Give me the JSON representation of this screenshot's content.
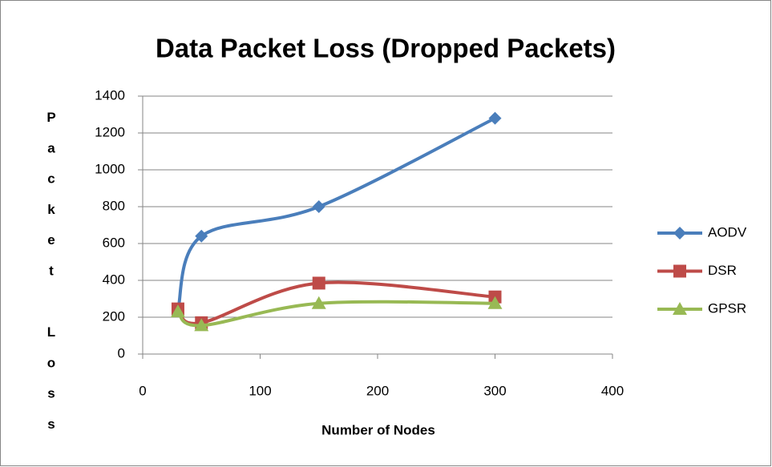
{
  "chart_data": {
    "type": "line",
    "title": "Data Packet Loss (Dropped Packets)",
    "x_label": "Number of Nodes",
    "y_label": "Packet Loss",
    "x": [
      30,
      50,
      150,
      300
    ],
    "series": [
      {
        "name": "AODV",
        "color": "#4a7ebb",
        "marker": "diamond",
        "values": [
          240,
          640,
          800,
          1280
        ]
      },
      {
        "name": "DSR",
        "color": "#be4b48",
        "marker": "square",
        "values": [
          245,
          170,
          385,
          310
        ]
      },
      {
        "name": "GPSR",
        "color": "#98b954",
        "marker": "triangle",
        "values": [
          230,
          155,
          275,
          275
        ]
      }
    ],
    "xlim": [
      0,
      400
    ],
    "xticks": [
      0,
      100,
      200,
      300,
      400
    ],
    "ylim": [
      0,
      1400
    ],
    "yticks": [
      0,
      200,
      400,
      600,
      800,
      1000,
      1200,
      1400
    ],
    "grid": true,
    "smooth": true,
    "legend": "right"
  }
}
